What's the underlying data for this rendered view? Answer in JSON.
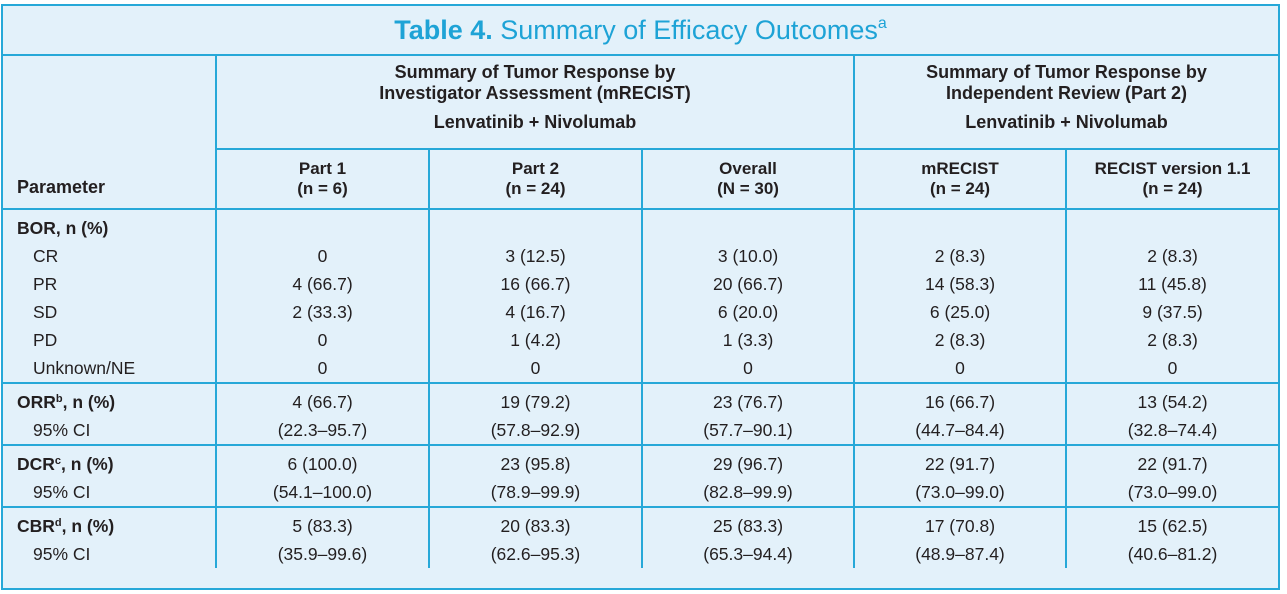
{
  "title": {
    "bold": "Table 4.",
    "rest": "Summary of Efficacy Outcomes",
    "sup": "a"
  },
  "header": {
    "parameter": "Parameter",
    "group1": {
      "title_line1": "Summary of Tumor Response by",
      "title_line2": "Investigator Assessment (mRECIST)",
      "treatment": "Lenvatinib + Nivolumab"
    },
    "group2": {
      "title_line1": "Summary of Tumor Response by",
      "title_line2": "Independent Review (Part 2)",
      "treatment": "Lenvatinib + Nivolumab"
    },
    "columns": [
      {
        "name": "Part 1",
        "n": "(n = 6)"
      },
      {
        "name": "Part 2",
        "n": "(n = 24)"
      },
      {
        "name": "Overall",
        "n": "(N = 30)"
      },
      {
        "name": "mRECIST",
        "n": "(n = 24)"
      },
      {
        "name": "RECIST version 1.1",
        "n": "(n = 24)"
      }
    ]
  },
  "sections": {
    "bor": {
      "label": "BOR, n (%)",
      "rows": [
        {
          "label": "CR",
          "values": [
            "0",
            "3 (12.5)",
            "3 (10.0)",
            "2 (8.3)",
            "2 (8.3)"
          ]
        },
        {
          "label": "PR",
          "values": [
            "4 (66.7)",
            "16 (66.7)",
            "20 (66.7)",
            "14 (58.3)",
            "11 (45.8)"
          ]
        },
        {
          "label": "SD",
          "values": [
            "2 (33.3)",
            "4 (16.7)",
            "6 (20.0)",
            "6 (25.0)",
            "9 (37.5)"
          ]
        },
        {
          "label": "PD",
          "values": [
            "0",
            "1 (4.2)",
            "1 (3.3)",
            "2 (8.3)",
            "2 (8.3)"
          ]
        },
        {
          "label": "Unknown/NE",
          "values": [
            "0",
            "0",
            "0",
            "0",
            "0"
          ]
        }
      ]
    },
    "orr": {
      "label": "ORR",
      "sup": "b",
      "suffix": ", n (%)",
      "values": [
        "4 (66.7)",
        "19 (79.2)",
        "23 (76.7)",
        "16 (66.7)",
        "13 (54.2)"
      ],
      "ci_label": "95% CI",
      "ci": [
        "(22.3–95.7)",
        "(57.8–92.9)",
        "(57.7–90.1)",
        "(44.7–84.4)",
        "(32.8–74.4)"
      ]
    },
    "dcr": {
      "label": "DCR",
      "sup": "c",
      "suffix": ", n (%)",
      "values": [
        "6 (100.0)",
        "23 (95.8)",
        "29 (96.7)",
        "22 (91.7)",
        "22 (91.7)"
      ],
      "ci_label": "95% CI",
      "ci": [
        "(54.1–100.0)",
        "(78.9–99.9)",
        "(82.8–99.9)",
        "(73.0–99.0)",
        "(73.0–99.0)"
      ]
    },
    "cbr": {
      "label": "CBR",
      "sup": "d",
      "suffix": ", n (%)",
      "values": [
        "5 (83.3)",
        "20 (83.3)",
        "25 (83.3)",
        "17 (70.8)",
        "15 (62.5)"
      ],
      "ci_label": "95% CI",
      "ci": [
        "(35.9–99.6)",
        "(62.6–95.3)",
        "(65.3–94.4)",
        "(48.9–87.4)",
        "(40.6–81.2)"
      ]
    }
  },
  "colors": {
    "accent": "#26a8d8",
    "title": "#1ea3d6",
    "background": "#e3f1fa",
    "text": "#231f20"
  }
}
